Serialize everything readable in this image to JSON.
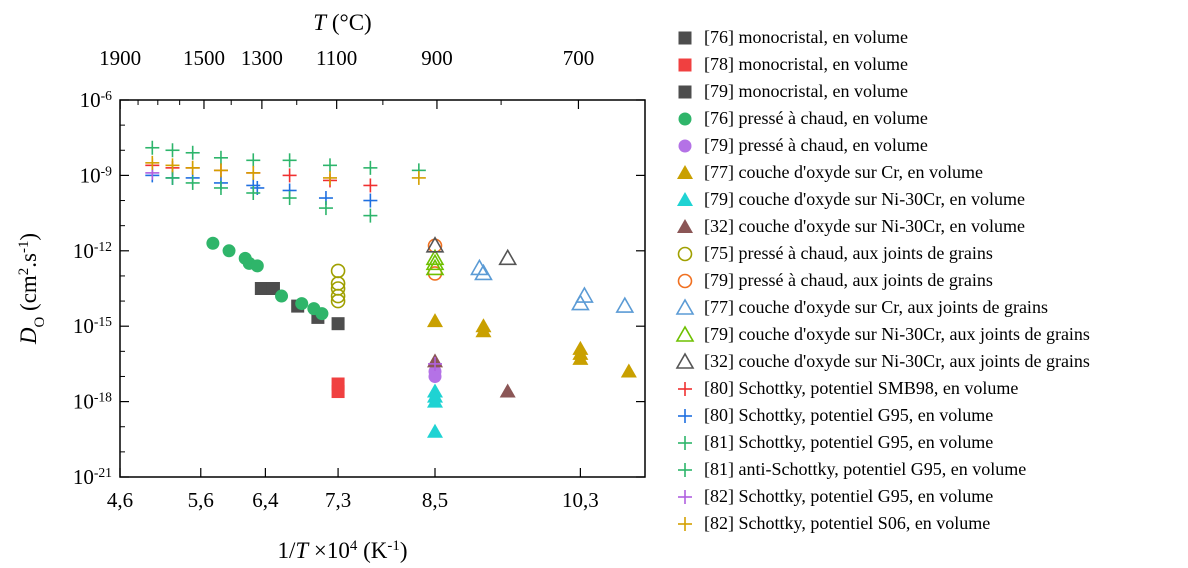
{
  "chart_data": {
    "type": "scatter",
    "x_axis": {
      "label_prefix": "1/",
      "label_var": "T",
      "label_mid": " ×10",
      "label_exp": "4",
      "label_suffix": " (K",
      "label_unit_exp": "-1",
      "label_end": ")",
      "range": [
        4.6,
        11.1
      ],
      "ticks": [
        4.6,
        5.6,
        6.4,
        7.3,
        8.5,
        10.3
      ],
      "tick_labels": [
        "4,6",
        "5,6",
        "6,4",
        "7,3",
        "8,5",
        "10,3"
      ],
      "scale": "reciprocal"
    },
    "top_axis": {
      "label_var": "T",
      "label_unit": " (°C)",
      "ticks": [
        1900,
        1500,
        1300,
        1100,
        900,
        700
      ],
      "tick_labels": [
        "1900",
        "1500",
        "1300",
        "1100",
        "900",
        "700"
      ]
    },
    "y_axis": {
      "label_var": "D",
      "label_sub": "O",
      "label_unit_a": " (cm",
      "label_unit_a_exp": "2",
      "label_unit_b": ".s",
      "label_unit_b_exp": "-1",
      "label_end": ")",
      "range_exp": [
        -21,
        -6
      ],
      "scale": "log",
      "ticks_exp": [
        -21,
        -18,
        -15,
        -12,
        -9,
        -6
      ],
      "tick_base": "10",
      "tick_labels_exp": [
        "-21",
        "-18",
        "-15",
        "-12",
        "-9",
        "-6"
      ]
    },
    "legend_position": "right",
    "grid": false,
    "series": [
      {
        "name": "[76] monocristal, en volume",
        "marker": "square",
        "fill": true,
        "color": "#4d4d4d",
        "points": [
          [
            6.35,
            -13.5
          ],
          [
            6.5,
            -13.5
          ],
          [
            6.8,
            -14.2
          ],
          [
            7.05,
            -14.65
          ],
          [
            7.3,
            -14.9
          ]
        ]
      },
      {
        "name": "[78] monocristal, en volume",
        "marker": "square",
        "fill": true,
        "color": "#f04040",
        "points": [
          [
            7.3,
            -17.3
          ],
          [
            7.3,
            -17.6
          ]
        ]
      },
      {
        "name": "[79] monocristal, en volume",
        "marker": "square",
        "fill": true,
        "color": "#4d4d4d",
        "points": []
      },
      {
        "name": "[76] pressé à chaud, en volume",
        "marker": "circle",
        "fill": true,
        "color": "#2fb56a",
        "points": [
          [
            5.75,
            -11.7
          ],
          [
            5.95,
            -12.0
          ],
          [
            6.15,
            -12.3
          ],
          [
            6.2,
            -12.5
          ],
          [
            6.3,
            -12.6
          ],
          [
            6.6,
            -13.8
          ],
          [
            6.85,
            -14.1
          ],
          [
            7.0,
            -14.3
          ],
          [
            7.1,
            -14.5
          ]
        ]
      },
      {
        "name": "[79] pressé à chaud, en volume",
        "marker": "circle",
        "fill": true,
        "color": "#b472e6",
        "points": [
          [
            8.5,
            -16.8
          ],
          [
            8.5,
            -17.0
          ]
        ]
      },
      {
        "name": "[77] couche d'oxyde sur Cr, en volume",
        "marker": "triangle",
        "fill": true,
        "color": "#c9a000",
        "points": [
          [
            8.5,
            -14.8
          ],
          [
            9.1,
            -15.0
          ],
          [
            9.1,
            -15.2
          ],
          [
            10.3,
            -15.9
          ],
          [
            10.3,
            -16.1
          ],
          [
            10.3,
            -16.3
          ],
          [
            10.9,
            -16.8
          ]
        ]
      },
      {
        "name": "[79] couche d'oxyde sur Ni-30Cr, en volume",
        "marker": "triangle",
        "fill": true,
        "color": "#1fd3d3",
        "points": [
          [
            8.5,
            -17.6
          ],
          [
            8.5,
            -17.8
          ],
          [
            8.5,
            -18.0
          ],
          [
            8.5,
            -19.2
          ]
        ]
      },
      {
        "name": "[32] couche d'oxyde sur Ni-30Cr, en volume",
        "marker": "triangle",
        "fill": true,
        "color": "#8b5656",
        "points": [
          [
            8.5,
            -16.4
          ],
          [
            9.4,
            -17.6
          ]
        ]
      },
      {
        "name": "[75] pressé à chaud, aux joints de grains",
        "marker": "circle",
        "fill": false,
        "color": "#a0a000",
        "points": [
          [
            7.3,
            -12.8
          ],
          [
            7.3,
            -13.3
          ],
          [
            7.3,
            -13.5
          ],
          [
            7.3,
            -13.8
          ],
          [
            7.3,
            -14.0
          ]
        ]
      },
      {
        "name": "[79] pressé à chaud, aux joints de grains",
        "marker": "circle",
        "fill": false,
        "color": "#f07020",
        "points": [
          [
            8.5,
            -11.8
          ],
          [
            8.5,
            -12.9
          ]
        ]
      },
      {
        "name": "[77] couche d'oxyde sur Cr, aux joints de grains",
        "marker": "triangle",
        "fill": false,
        "color": "#5b9bd5",
        "points": [
          [
            9.05,
            -12.7
          ],
          [
            9.1,
            -12.9
          ],
          [
            10.3,
            -14.1
          ],
          [
            10.35,
            -13.8
          ],
          [
            10.85,
            -14.2
          ]
        ]
      },
      {
        "name": "[79] couche d'oxyde sur Ni-30Cr, aux joints de grains",
        "marker": "triangle",
        "fill": false,
        "color": "#6ec000",
        "points": [
          [
            8.5,
            -12.3
          ],
          [
            8.5,
            -12.5
          ],
          [
            8.5,
            -12.7
          ]
        ]
      },
      {
        "name": "[32] couche d'oxyde sur Ni-30Cr, aux joints de grains",
        "marker": "triangle",
        "fill": false,
        "color": "#555555",
        "points": [
          [
            8.5,
            -11.8
          ],
          [
            9.4,
            -12.3
          ]
        ]
      },
      {
        "name": "[80] Schottky, potentiel SMB98, en volume",
        "marker": "plus",
        "fill": false,
        "color": "#f03030",
        "points": [
          [
            5.0,
            -8.6
          ],
          [
            5.25,
            -8.7
          ],
          [
            5.5,
            -8.7
          ],
          [
            5.85,
            -8.8
          ],
          [
            6.25,
            -8.9
          ],
          [
            6.7,
            -9.0
          ],
          [
            7.2,
            -9.2
          ],
          [
            7.7,
            -9.4
          ]
        ]
      },
      {
        "name": "[80] Schottky, potentiel G95, en volume",
        "marker": "plus",
        "fill": false,
        "color": "#1f6fe0",
        "points": [
          [
            5.0,
            -9.0
          ],
          [
            5.25,
            -9.1
          ],
          [
            5.5,
            -9.1
          ],
          [
            5.85,
            -9.3
          ],
          [
            6.25,
            -9.4
          ],
          [
            6.3,
            -9.5
          ],
          [
            6.7,
            -9.6
          ],
          [
            7.15,
            -9.9
          ],
          [
            7.7,
            -10.0
          ]
        ]
      },
      {
        "name": "[81] Schottky, potentiel G95, en volume",
        "marker": "plus",
        "fill": false,
        "color": "#2db56b",
        "points": [
          [
            5.0,
            -7.9
          ],
          [
            5.25,
            -8.0
          ],
          [
            5.5,
            -8.1
          ],
          [
            5.85,
            -8.3
          ],
          [
            6.25,
            -8.4
          ],
          [
            6.7,
            -8.4
          ],
          [
            7.2,
            -8.6
          ],
          [
            7.7,
            -8.7
          ],
          [
            8.3,
            -8.8
          ]
        ]
      },
      {
        "name": "[81] anti-Schottky, potentiel G95, en volume",
        "marker": "plus",
        "fill": false,
        "color": "#2db56b",
        "points": [
          [
            5.25,
            -9.1
          ],
          [
            5.5,
            -9.3
          ],
          [
            5.85,
            -9.5
          ],
          [
            6.25,
            -9.7
          ],
          [
            6.7,
            -9.9
          ],
          [
            7.15,
            -10.3
          ],
          [
            7.7,
            -10.6
          ]
        ]
      },
      {
        "name": "[82] Schottky, potentiel G95, en volume",
        "marker": "plus",
        "fill": false,
        "color": "#b060e0",
        "points": [
          [
            5.0,
            -8.9
          ],
          [
            8.5,
            -16.5
          ]
        ]
      },
      {
        "name": "[82] Schottky, potentiel S06, en volume",
        "marker": "plus",
        "fill": false,
        "color": "#d4a000",
        "points": [
          [
            5.0,
            -8.5
          ],
          [
            5.25,
            -8.6
          ],
          [
            5.5,
            -8.7
          ],
          [
            5.85,
            -8.8
          ],
          [
            6.25,
            -8.9
          ],
          [
            7.2,
            -9.1
          ],
          [
            8.3,
            -9.1
          ]
        ]
      }
    ]
  }
}
